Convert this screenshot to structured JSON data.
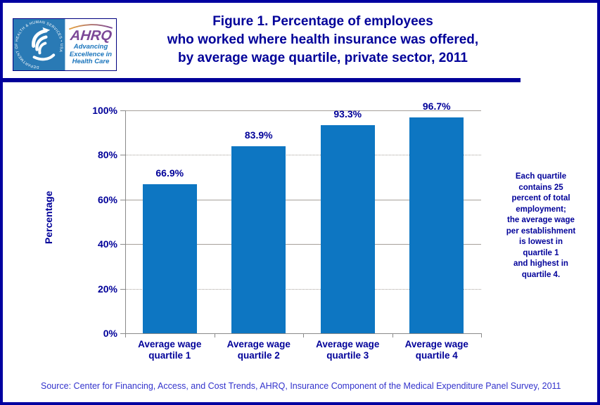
{
  "header": {
    "logo": {
      "hhs_seal_text": "DEPARTMENT OF HEALTH & HUMAN SERVICES • USA",
      "ahrq_acronym": "AHRQ",
      "tagline_lines": [
        "Advancing",
        "Excellence in",
        "Health Care"
      ]
    },
    "title_lines": [
      "Figure 1. Percentage of employees",
      "who worked where health insurance was offered,",
      "by average wage quartile, private sector, 2011"
    ]
  },
  "chart_data": {
    "type": "bar",
    "title": "Figure 1. Percentage of employees who worked where health insurance was offered, by average wage quartile, private sector, 2011",
    "categories": [
      "Average wage quartile 1",
      "Average wage quartile 2",
      "Average wage quartile 3",
      "Average wage quartile 4"
    ],
    "category_label_lines": [
      [
        "Average wage",
        "quartile 1"
      ],
      [
        "Average wage",
        "quartile 2"
      ],
      [
        "Average wage",
        "quartile 3"
      ],
      [
        "Average wage",
        "quartile 4"
      ]
    ],
    "values": [
      66.9,
      83.9,
      93.3,
      96.7
    ],
    "value_labels": [
      "66.9%",
      "83.9%",
      "93.3%",
      "96.7%"
    ],
    "xlabel": "",
    "ylabel": "Percentage",
    "ylim": [
      0,
      100
    ],
    "ytick_interval": 20,
    "ytick_labels": [
      "0%",
      "20%",
      "40%",
      "60%",
      "80%",
      "100%"
    ],
    "grid": true,
    "legend": false
  },
  "annotation": {
    "lines": [
      "Each quartile",
      "contains 25",
      "percent of total",
      "employment;",
      "the average wage",
      "per establishment",
      "is lowest in",
      "quartile 1",
      "and highest in",
      "quartile 4."
    ]
  },
  "source": "Source: Center for Financing, Access, and Cost Trends, AHRQ, Insurance Component of the Medical Expenditure Panel Survey, 2011",
  "colors": {
    "accent_navy": "#000099",
    "bar_blue": "#0d76c2",
    "gridline_gray": "#a6a09a",
    "axis_gray": "#8a8a8a",
    "source_blue": "#3333cc",
    "hhs_blue": "#2a7ab5",
    "ahrq_purple": "#7b4797",
    "tagline_blue": "#1b75bc",
    "border_navy": "#0000a0"
  }
}
